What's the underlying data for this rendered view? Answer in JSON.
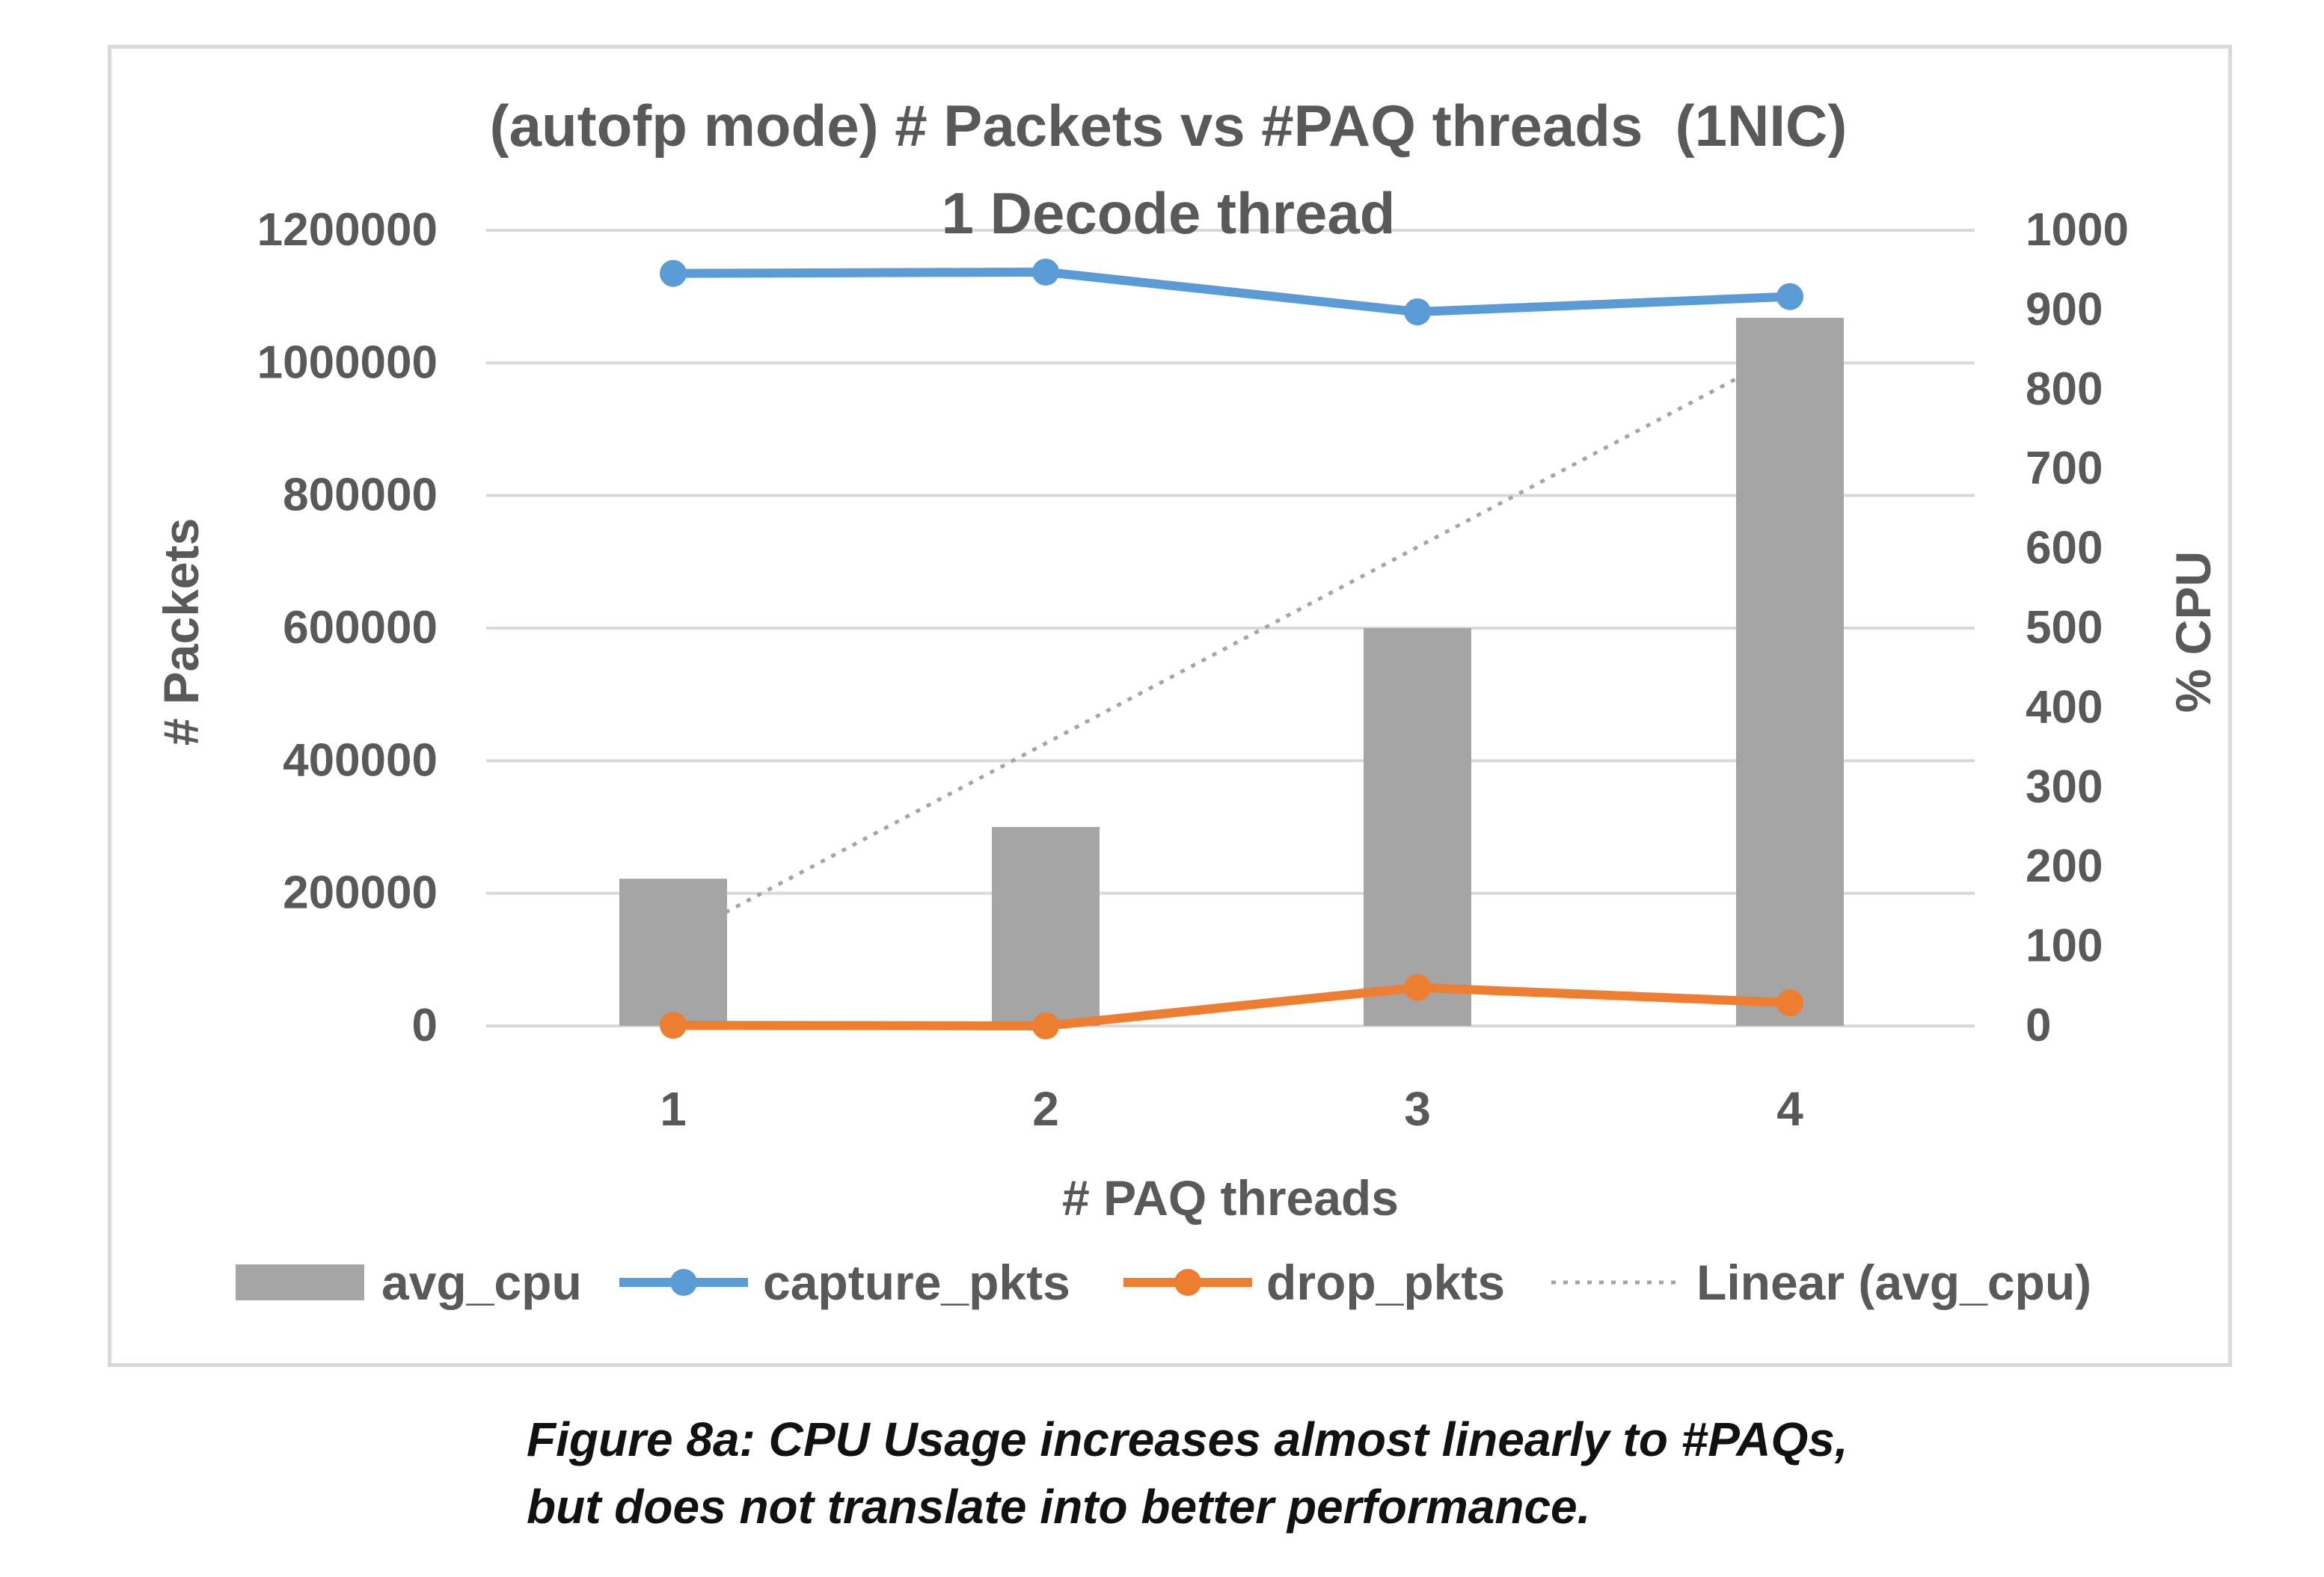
{
  "chart_data": {
    "type": "bar",
    "title": "(autofp mode) # Packets vs #PAQ threads  (1NIC)",
    "subtitle": "1 Decode thread",
    "xlabel": "# PAQ threads",
    "ylabel": "# Packets",
    "y2label": "% CPU",
    "categories": [
      "1",
      "2",
      "3",
      "4"
    ],
    "ylim": [
      0,
      1200000
    ],
    "yticks": [
      "0",
      "200000",
      "400000",
      "600000",
      "800000",
      "1000000",
      "1200000"
    ],
    "y2lim": [
      0,
      1000
    ],
    "y2ticks": [
      "0",
      "100",
      "200",
      "300",
      "400",
      "500",
      "600",
      "700",
      "800",
      "900",
      "1000"
    ],
    "grid": true,
    "legend_position": "bottom",
    "series": [
      {
        "name": "avg_cpu",
        "type": "bar",
        "axis": "right",
        "color": "#a5a5a5",
        "values": [
          185,
          250,
          500,
          890
        ]
      },
      {
        "name": "capture_pkts",
        "type": "line",
        "axis": "left",
        "color": "#5b9bd5",
        "values": [
          1135000,
          1137000,
          1077000,
          1100000
        ]
      },
      {
        "name": "drop_pkts",
        "type": "line",
        "axis": "left",
        "color": "#ed7d31",
        "values": [
          1000,
          0,
          58000,
          35000
        ]
      },
      {
        "name": "Linear (avg_cpu)",
        "type": "trendline",
        "axis": "right",
        "color": "#a5a5a5",
        "values": [
          108,
          355,
          602,
          849
        ]
      }
    ]
  },
  "caption": {
    "line1": "Figure 8a: CPU Usage increases almost linearly to #PAQs,",
    "line2": "but does not translate into better performance."
  }
}
